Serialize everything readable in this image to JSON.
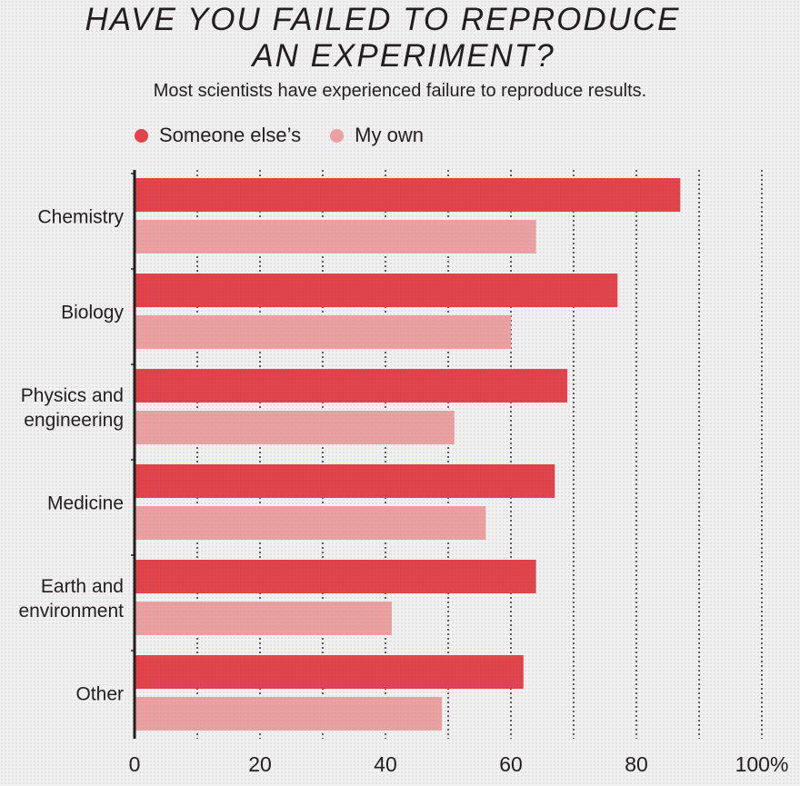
{
  "header": {
    "title_line1": "HAVE YOU FAILED TO REPRODUCE",
    "title_line2": "AN EXPERIMENT?",
    "subtitle": "Most scientists have experienced failure to reproduce results."
  },
  "colors": {
    "someone_else": "#e0454c",
    "my_own": "#eaa1a2"
  },
  "chart_data": {
    "type": "bar",
    "orientation": "horizontal",
    "categories": [
      [
        "Chemistry"
      ],
      [
        "Biology"
      ],
      [
        "Physics and",
        "engineering"
      ],
      [
        "Medicine"
      ],
      [
        "Earth and",
        "environment"
      ],
      [
        "Other"
      ]
    ],
    "series": [
      {
        "name": "Someone else’s",
        "values": [
          87,
          77,
          69,
          67,
          64,
          62
        ]
      },
      {
        "name": "My own",
        "values": [
          64,
          60,
          51,
          56,
          41,
          49
        ]
      }
    ],
    "xlim": [
      0,
      100
    ],
    "xticks": [
      "0",
      "20",
      "40",
      "60",
      "80",
      "100%"
    ],
    "xtick_values": [
      0,
      20,
      40,
      60,
      80,
      100
    ],
    "grid": true,
    "legend": "top-left"
  }
}
